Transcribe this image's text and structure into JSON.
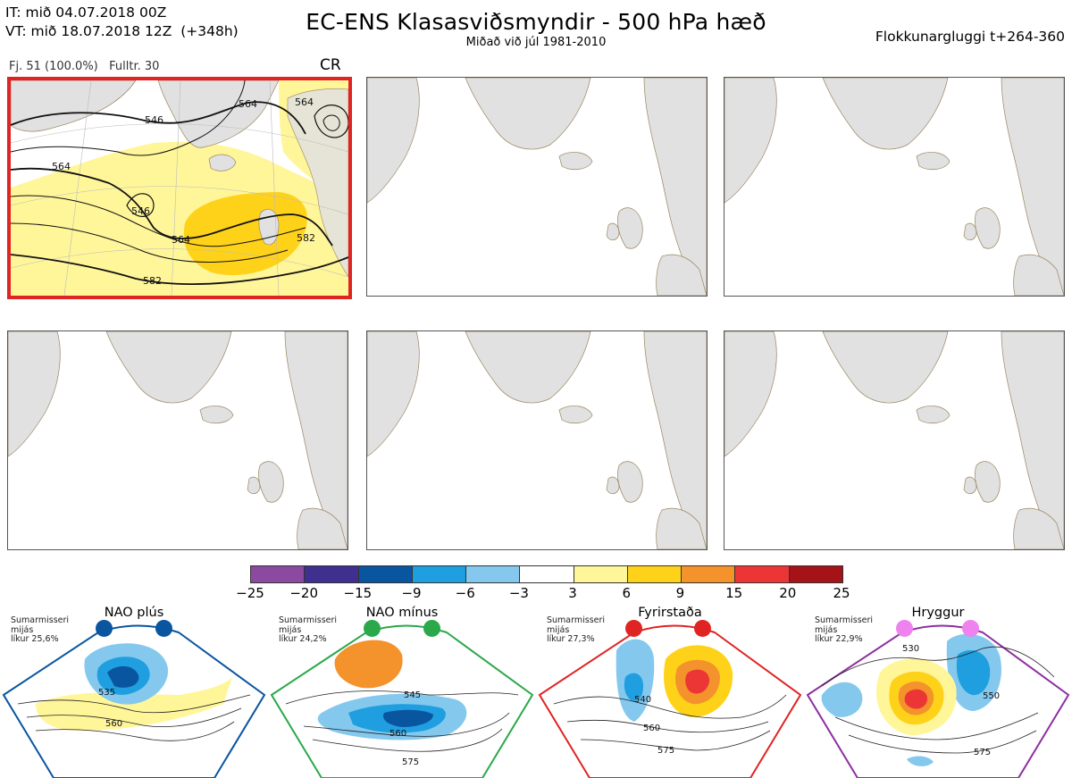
{
  "header": {
    "it_line": "IT: mið 04.07.2018 00Z",
    "vt_line": "VT: mið 18.07.2018 12Z  (+348h)",
    "title": "EC-ENS Klasasviðsmyndir - 500 hPa hæð",
    "subtitle": "Miðað við júl 1981-2010",
    "window": "Flokkunargluggi t+264-360"
  },
  "panel_meta": {
    "fj": "Fj. 51 (100.0%)",
    "fulltr": "Fulltr. 30",
    "regime": "CR"
  },
  "chart_data": [
    {
      "type": "heatmap",
      "panel": "main-forecast",
      "contour_labels": [
        "546",
        "564",
        "564",
        "546",
        "564",
        "564",
        "582",
        "582"
      ],
      "contour_levels": [
        546,
        564,
        582
      ],
      "anomaly_hint": "positive anomaly (3 to 9) over North Atlantic and British Isles"
    },
    {
      "type": "heatmap",
      "title": "colorbar",
      "tick_labels": [
        "−25",
        "−20",
        "−15",
        "−9",
        "−6",
        "−3",
        "3",
        "6",
        "9",
        "15",
        "20",
        "25"
      ],
      "bins": [
        {
          "from": -25,
          "to": -20,
          "color": "#8b4aa0"
        },
        {
          "from": -20,
          "to": -15,
          "color": "#3f2f8f"
        },
        {
          "from": -15,
          "to": -9,
          "color": "#0a55a0"
        },
        {
          "from": -9,
          "to": -6,
          "color": "#1f9fdf"
        },
        {
          "from": -6,
          "to": -3,
          "color": "#84c8ee"
        },
        {
          "from": -3,
          "to": 3,
          "color": "#ffffff"
        },
        {
          "from": 3,
          "to": 6,
          "color": "#fff69a"
        },
        {
          "from": 6,
          "to": 9,
          "color": "#ffd21a"
        },
        {
          "from": 9,
          "to": 15,
          "color": "#f4922c"
        },
        {
          "from": 15,
          "to": 20,
          "color": "#ec3535"
        },
        {
          "from": 20,
          "to": 25,
          "color": "#a51217"
        }
      ]
    }
  ],
  "clusters": [
    {
      "title": "NAO plús",
      "note": "Sumarmisseri\nmijás\nlíkur 25,6%",
      "color": "#0a55a0",
      "contour_labels": [
        "535",
        "560"
      ]
    },
    {
      "title": "NAO mínus",
      "note": "Sumarmisseri\nmijás\nlíkur 24,2%",
      "color": "#2aa84a",
      "contour_labels": [
        "545",
        "560",
        "575"
      ]
    },
    {
      "title": "Fyrirstaða",
      "note": "Sumarmisseri\nmijás\nlíkur 27,3%",
      "color": "#e02424",
      "contour_labels": [
        "540",
        "560",
        "575"
      ]
    },
    {
      "title": "Hryggur",
      "note": "Sumarmisseri\nmijás\nlíkur 22,9%",
      "color": "#8e2fa0",
      "contour_labels": [
        "530",
        "550",
        "575"
      ]
    }
  ],
  "colors": {
    "land": "#e1e1e1",
    "coast": "#9a8560",
    "selected_border": "#e02424"
  }
}
